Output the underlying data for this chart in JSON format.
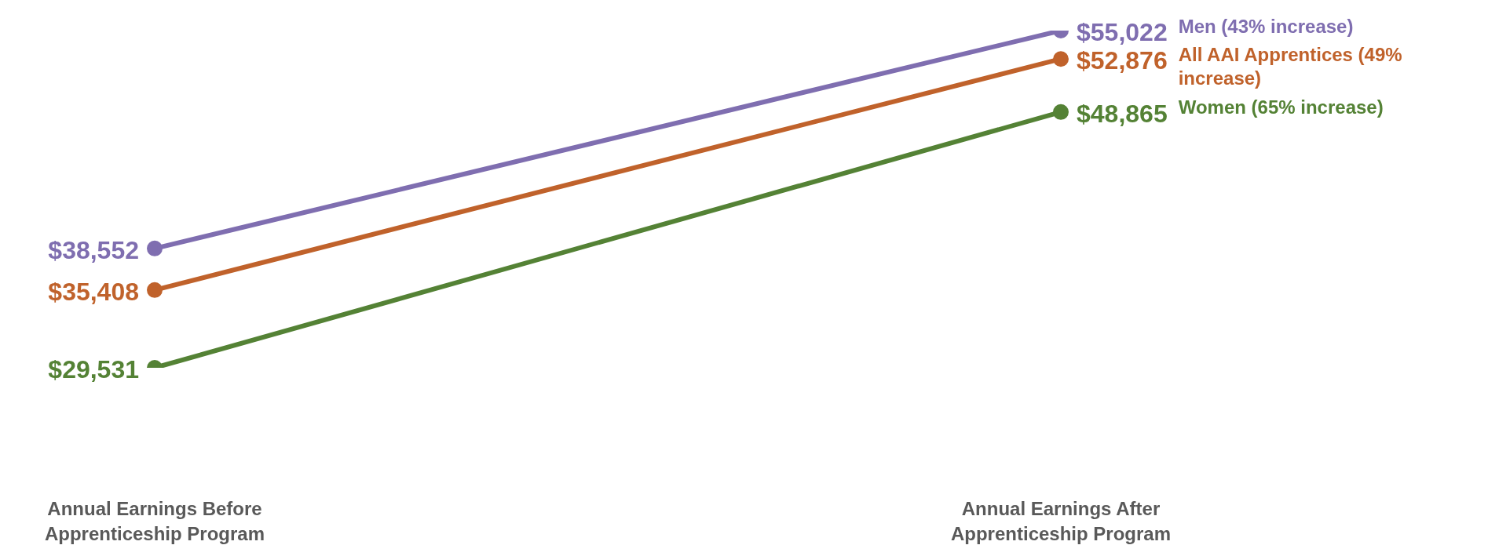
{
  "chart_data": {
    "type": "line",
    "marker": "circle",
    "categories": [
      "Annual Earnings Before Apprenticeship Program",
      "Annual Earnings After Apprenticeship Program"
    ],
    "series": [
      {
        "name": "Men (43% increase)",
        "color": "#7f6eb0",
        "values": [
          38552,
          55022
        ],
        "value_labels": [
          "$38,552",
          "$55,022"
        ]
      },
      {
        "name": "All AAI Apprentices (49% increase)",
        "color": "#c0622b",
        "values": [
          35408,
          52876
        ],
        "value_labels": [
          "$35,408",
          "$52,876"
        ]
      },
      {
        "name": "Women (65% increase)",
        "color": "#548235",
        "values": [
          29531,
          48865
        ],
        "value_labels": [
          "$29,531",
          "$48,865"
        ]
      }
    ]
  }
}
